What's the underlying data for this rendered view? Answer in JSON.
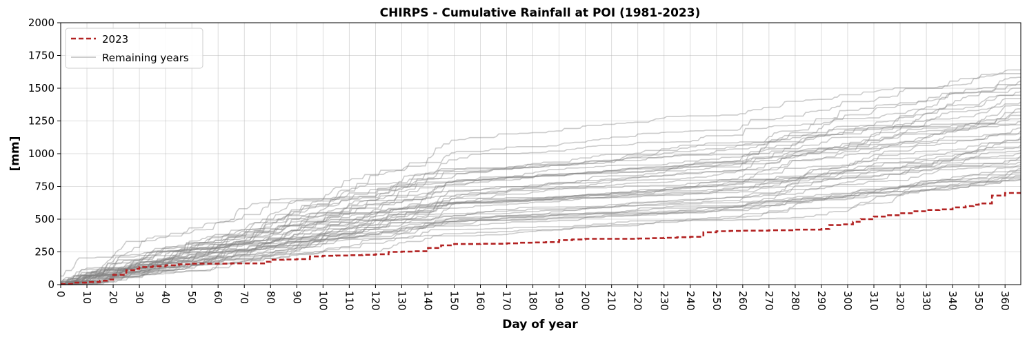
{
  "chart_data": {
    "type": "line",
    "title": "CHIRPS - Cumulative Rainfall at POI (1981-2023)",
    "xlabel": "Day of year",
    "ylabel": "[mm]",
    "xlim": [
      0,
      366
    ],
    "ylim": [
      0,
      2000
    ],
    "xticks": [
      0,
      10,
      20,
      30,
      40,
      50,
      60,
      70,
      80,
      90,
      100,
      110,
      120,
      130,
      140,
      150,
      160,
      170,
      180,
      190,
      200,
      210,
      220,
      230,
      240,
      250,
      260,
      270,
      280,
      290,
      300,
      310,
      320,
      330,
      340,
      350,
      360
    ],
    "yticks": [
      0,
      250,
      500,
      750,
      1000,
      1250,
      1500,
      1750,
      2000
    ],
    "grid": true,
    "legend_position": "top-left",
    "legend": [
      "2023",
      "Remaining years"
    ],
    "highlight_color": "#b22222",
    "other_color": "#808080",
    "highlight_series": {
      "name": "2023",
      "x": [
        0,
        5,
        10,
        15,
        18,
        20,
        25,
        28,
        30,
        35,
        40,
        45,
        50,
        55,
        60,
        65,
        70,
        75,
        78,
        80,
        85,
        90,
        95,
        100,
        105,
        110,
        115,
        120,
        125,
        130,
        135,
        140,
        145,
        150,
        160,
        170,
        175,
        180,
        185,
        190,
        195,
        200,
        210,
        220,
        225,
        230,
        235,
        240,
        245,
        250,
        255,
        260,
        270,
        280,
        290,
        293,
        298,
        302,
        305,
        310,
        315,
        320,
        325,
        330,
        335,
        340,
        345,
        348,
        350,
        355,
        360,
        366
      ],
      "y": [
        5,
        15,
        20,
        30,
        38,
        75,
        110,
        120,
        135,
        140,
        148,
        155,
        160,
        160,
        160,
        162,
        162,
        162,
        175,
        190,
        192,
        195,
        215,
        220,
        222,
        225,
        228,
        232,
        250,
        252,
        255,
        280,
        300,
        310,
        312,
        315,
        320,
        322,
        325,
        340,
        345,
        350,
        350,
        352,
        355,
        358,
        362,
        365,
        400,
        408,
        410,
        412,
        415,
        420,
        425,
        455,
        460,
        480,
        500,
        520,
        530,
        545,
        560,
        570,
        575,
        590,
        600,
        610,
        620,
        680,
        700,
        700
      ]
    },
    "background_series_count": 42,
    "background_series_final_range": [
      800,
      1640
    ]
  }
}
